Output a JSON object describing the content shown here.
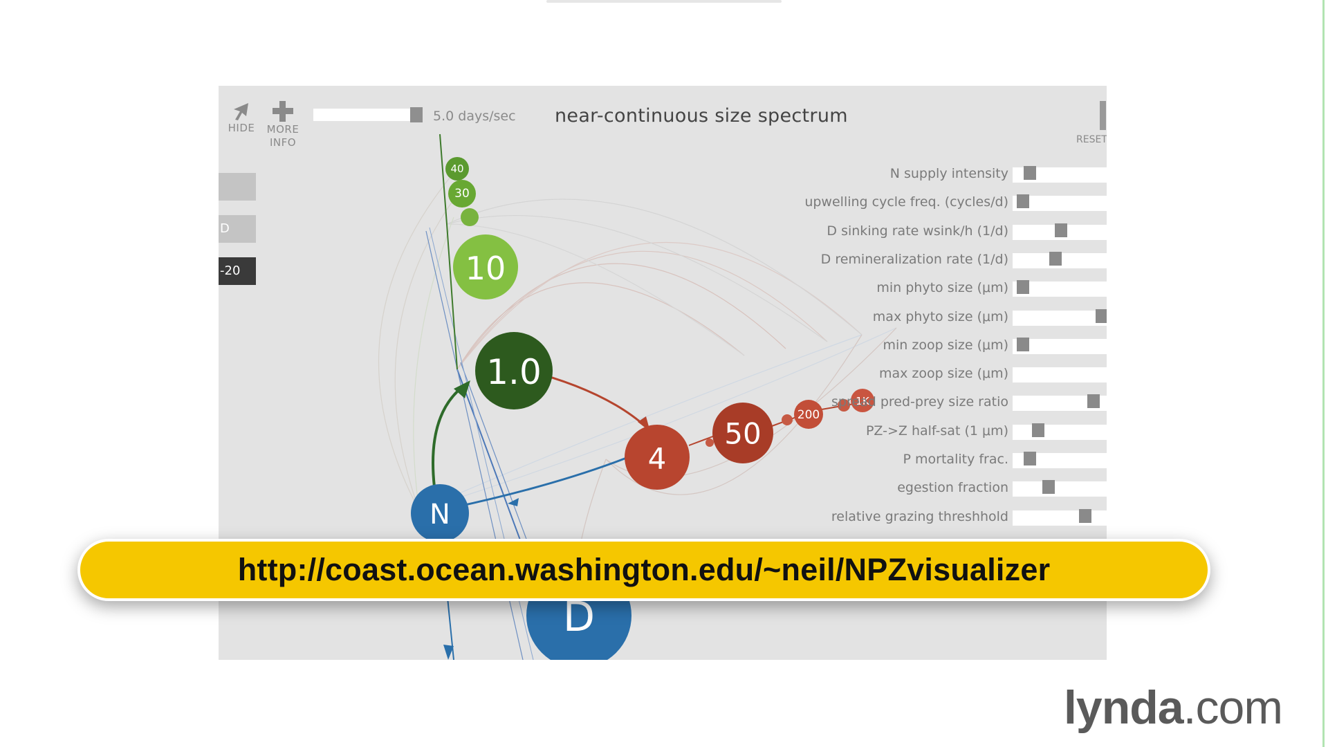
{
  "toolbar": {
    "hide_label": "HIDE",
    "more_info_label_1": "MORE",
    "more_info_label_2": "INFO",
    "speed_label": "5.0 days/sec",
    "speed_level": 0.85,
    "reset_label": "RESET"
  },
  "title": "near-continuous size spectrum",
  "presets": [
    "",
    "D",
    "-20"
  ],
  "sliders": [
    {
      "label": "N supply intensity",
      "value": 0.12
    },
    {
      "label": "upwelling cycle freq. (cycles/d)",
      "value": 0.03
    },
    {
      "label": "D sinking rate wsink/h (1/d)",
      "value": 0.5
    },
    {
      "label": "D remineralization rate (1/d)",
      "value": 0.43
    },
    {
      "label": "min phyto size (μm)",
      "value": 0.03
    },
    {
      "label": "max phyto size (μm)",
      "value": 1.0
    },
    {
      "label": "min zoop size (μm)",
      "value": 0.03
    },
    {
      "label": "max zoop size (μm)",
      "value": null
    },
    {
      "label": "spread pred-prey size ratio",
      "value": 0.9
    },
    {
      "label": "PZ->Z half-sat (1 μm)",
      "value": 0.22
    },
    {
      "label": "P mortality frac.",
      "value": 0.12
    },
    {
      "label": "egestion fraction",
      "value": 0.35
    },
    {
      "label": "relative grazing threshhold",
      "value": 0.8
    }
  ],
  "nodes": {
    "n40": "40",
    "n30": "30",
    "n10": "10",
    "n1": "1.0",
    "n4": "4",
    "n50": "50",
    "n200": "200",
    "n1k": "1K",
    "nN": "N",
    "nD": "D"
  },
  "colors": {
    "phyto": "#6aa632",
    "phyto_dark": "#2f5a1c",
    "zoo": "#b5452e",
    "nutrient": "#2a6faa",
    "banner": "#f5c700"
  },
  "banner_url": "http://coast.ocean.washington.edu/~neil/NPZvisualizer",
  "logo": {
    "brand": "lynda",
    "suffix": ".com"
  }
}
